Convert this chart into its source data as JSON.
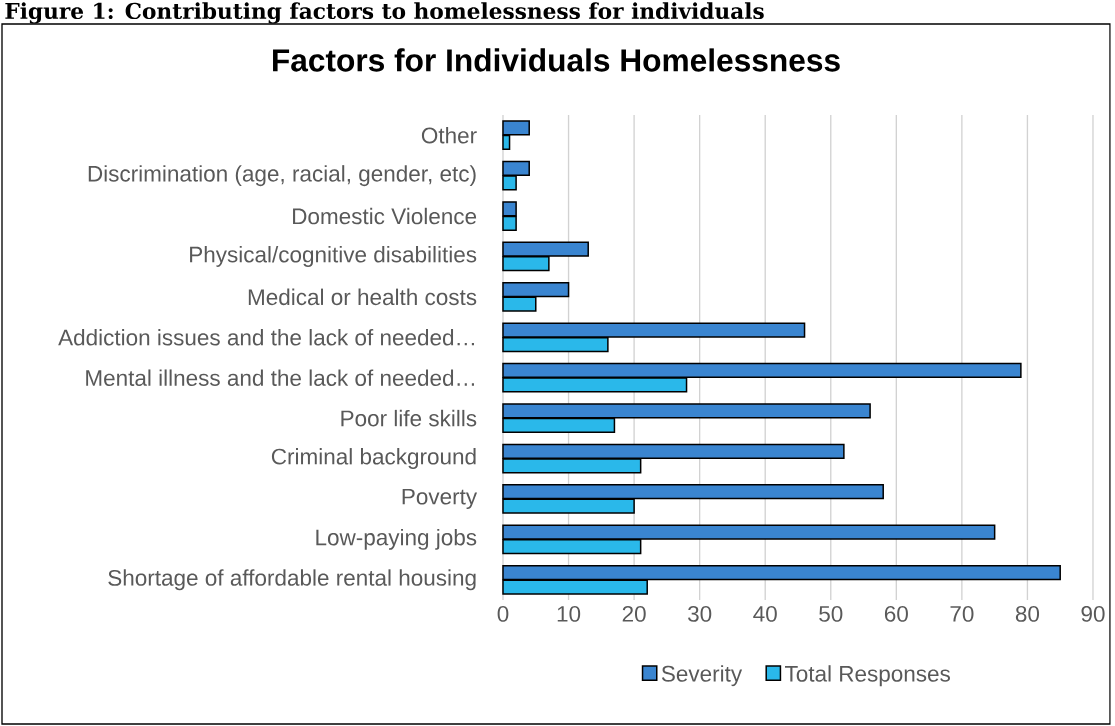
{
  "chart_data": {
    "type": "bar",
    "orientation": "horizontal",
    "title": "Factors for Individuals Homelessness",
    "annotations": [
      "Figure 1: Contributing factors to homelessness for individuals"
    ],
    "categories": [
      "Other",
      "Discrimination (age, racial, gender, etc)",
      "Domestic Violence",
      "Physical/cognitive disabilities",
      "Medical or health costs",
      "Addiction issues and the lack of needed…",
      "Mental illness and the lack of needed…",
      "Poor life skills",
      "Criminal background",
      "Poverty",
      "Low-paying jobs",
      "Shortage of affordable rental housing"
    ],
    "series": [
      {
        "name": "Severity",
        "color": "#3a85d0",
        "values": [
          4,
          4,
          2,
          13,
          10,
          46,
          79,
          56,
          52,
          58,
          75,
          85
        ]
      },
      {
        "name": "Total Responses",
        "color": "#2ab8ea",
        "values": [
          1,
          2,
          2,
          7,
          5,
          16,
          28,
          17,
          21,
          20,
          21,
          22
        ]
      }
    ],
    "xlim": [
      0,
      90
    ],
    "xticks": [
      0,
      10,
      20,
      30,
      40,
      50,
      60,
      70,
      80,
      90
    ],
    "grid": "x",
    "legend": "bottom"
  }
}
